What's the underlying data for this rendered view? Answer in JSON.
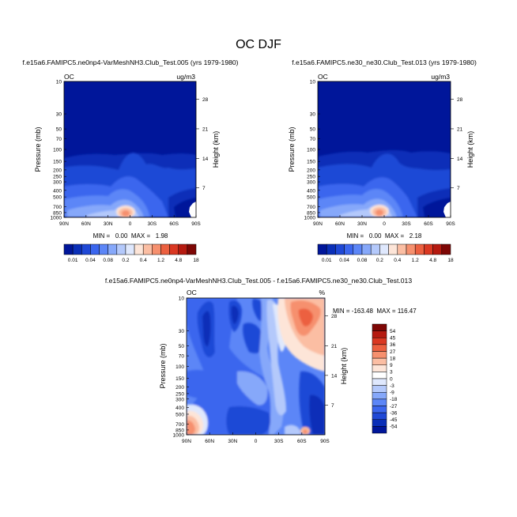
{
  "figure": {
    "title": "OC DJF"
  },
  "chart_data": [
    {
      "type": "heatmap",
      "title": "f.e15a6.FAMIPC5.ne0np4-VarMeshNH3.Club_Test.005 (yrs 1979-1980)",
      "variable": "OC",
      "units": "ug/m3",
      "ylabel": "Pressure (mb)",
      "y2label": "Height (km)",
      "x_ticks": [
        "90N",
        "60N",
        "30N",
        "0",
        "30S",
        "60S",
        "90S"
      ],
      "y_ticks": [
        "10",
        "30",
        "50",
        "70",
        "100",
        "150",
        "200",
        "250",
        "300",
        "400",
        "500",
        "700",
        "850",
        "1000"
      ],
      "y2_ticks": [
        "28",
        "21",
        "14",
        "7"
      ],
      "stats": "MIN =   0.00  MAX =   1.98",
      "colorbar_labels": [
        "0.01",
        "0.04",
        "0.08",
        "0.2",
        "0.4",
        "1.2",
        "4.8",
        "18"
      ],
      "colorbar_colors": [
        "#00169a",
        "#0a2fb8",
        "#1f48d6",
        "#3b66ee",
        "#5c86f7",
        "#86a8fa",
        "#b4c9fb",
        "#dfe8fd",
        "#fde5d8",
        "#fbbea3",
        "#f6906e",
        "#ec6040",
        "#da3822",
        "#b51a10",
        "#7e0705"
      ],
      "min": 0.0,
      "max": 1.98
    },
    {
      "type": "heatmap",
      "title": "f.e15a6.FAMIPC5.ne30_ne30.Club_Test.013 (yrs 1979-1980)",
      "variable": "OC",
      "units": "ug/m3",
      "ylabel": "Pressure (mb)",
      "y2label": "Height (km)",
      "x_ticks": [
        "90N",
        "60N",
        "30N",
        "0",
        "30S",
        "60S",
        "90S"
      ],
      "y_ticks": [
        "10",
        "30",
        "50",
        "70",
        "100",
        "150",
        "200",
        "250",
        "300",
        "400",
        "500",
        "700",
        "850",
        "1000"
      ],
      "y2_ticks": [
        "28",
        "21",
        "14",
        "7"
      ],
      "stats": "MIN =   0.00  MAX =   2.18",
      "colorbar_labels": [
        "0.01",
        "0.04",
        "0.08",
        "0.2",
        "0.4",
        "1.2",
        "4.8",
        "18"
      ],
      "colorbar_colors": [
        "#00169a",
        "#0a2fb8",
        "#1f48d6",
        "#3b66ee",
        "#5c86f7",
        "#86a8fa",
        "#b4c9fb",
        "#dfe8fd",
        "#fde5d8",
        "#fbbea3",
        "#f6906e",
        "#ec6040",
        "#da3822",
        "#b51a10",
        "#7e0705"
      ],
      "min": 0.0,
      "max": 2.18
    },
    {
      "type": "heatmap",
      "title": "f.e15a6.FAMIPC5.ne0np4-VarMeshNH3.Club_Test.005 - f.e15a6.FAMIPC5.ne30_ne30.Club_Test.013",
      "variable": "OC",
      "units": "%",
      "ylabel": "Pressure (mb)",
      "y2label": "Height (km)",
      "x_ticks": [
        "90N",
        "60N",
        "30N",
        "0",
        "30S",
        "60S",
        "90S"
      ],
      "y_ticks": [
        "10",
        "30",
        "50",
        "70",
        "100",
        "150",
        "200",
        "250",
        "300",
        "400",
        "500",
        "700",
        "850",
        "1000"
      ],
      "y2_ticks": [
        "28",
        "21",
        "14",
        "7"
      ],
      "stats": "MIN = -163.48  MAX = 116.47",
      "colorbar_labels": [
        "54",
        "45",
        "36",
        "27",
        "18",
        "9",
        "3",
        "0",
        "-3",
        "-9",
        "-18",
        "-27",
        "-36",
        "-45",
        "-54"
      ],
      "colorbar_colors": [
        "#7e0705",
        "#b51a10",
        "#da3822",
        "#ec6040",
        "#f6906e",
        "#fbbea3",
        "#fde5d8",
        "#ffffff",
        "#dfe8fd",
        "#b4c9fb",
        "#86a8fa",
        "#5c86f7",
        "#3b66ee",
        "#1f48d6",
        "#0a2fb8",
        "#00169a"
      ],
      "min": -163.48,
      "max": 116.47
    }
  ]
}
